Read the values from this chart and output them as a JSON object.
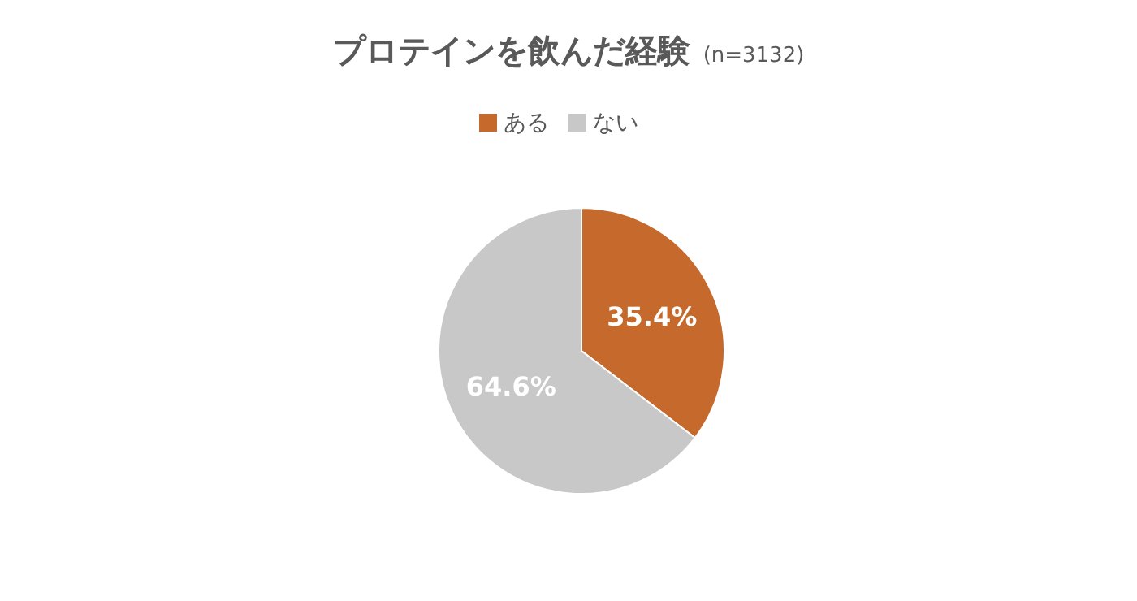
{
  "chart_data": {
    "type": "pie",
    "title": "プロテインを飲んだ経験",
    "subtitle": "(n=3132)",
    "categories": [
      "ある",
      "ない"
    ],
    "values": [
      35.4,
      64.6
    ],
    "colors": [
      "#c5692c",
      "#c8c8c8"
    ],
    "value_labels": [
      "35.4%",
      "64.6%"
    ],
    "legend": "top"
  }
}
